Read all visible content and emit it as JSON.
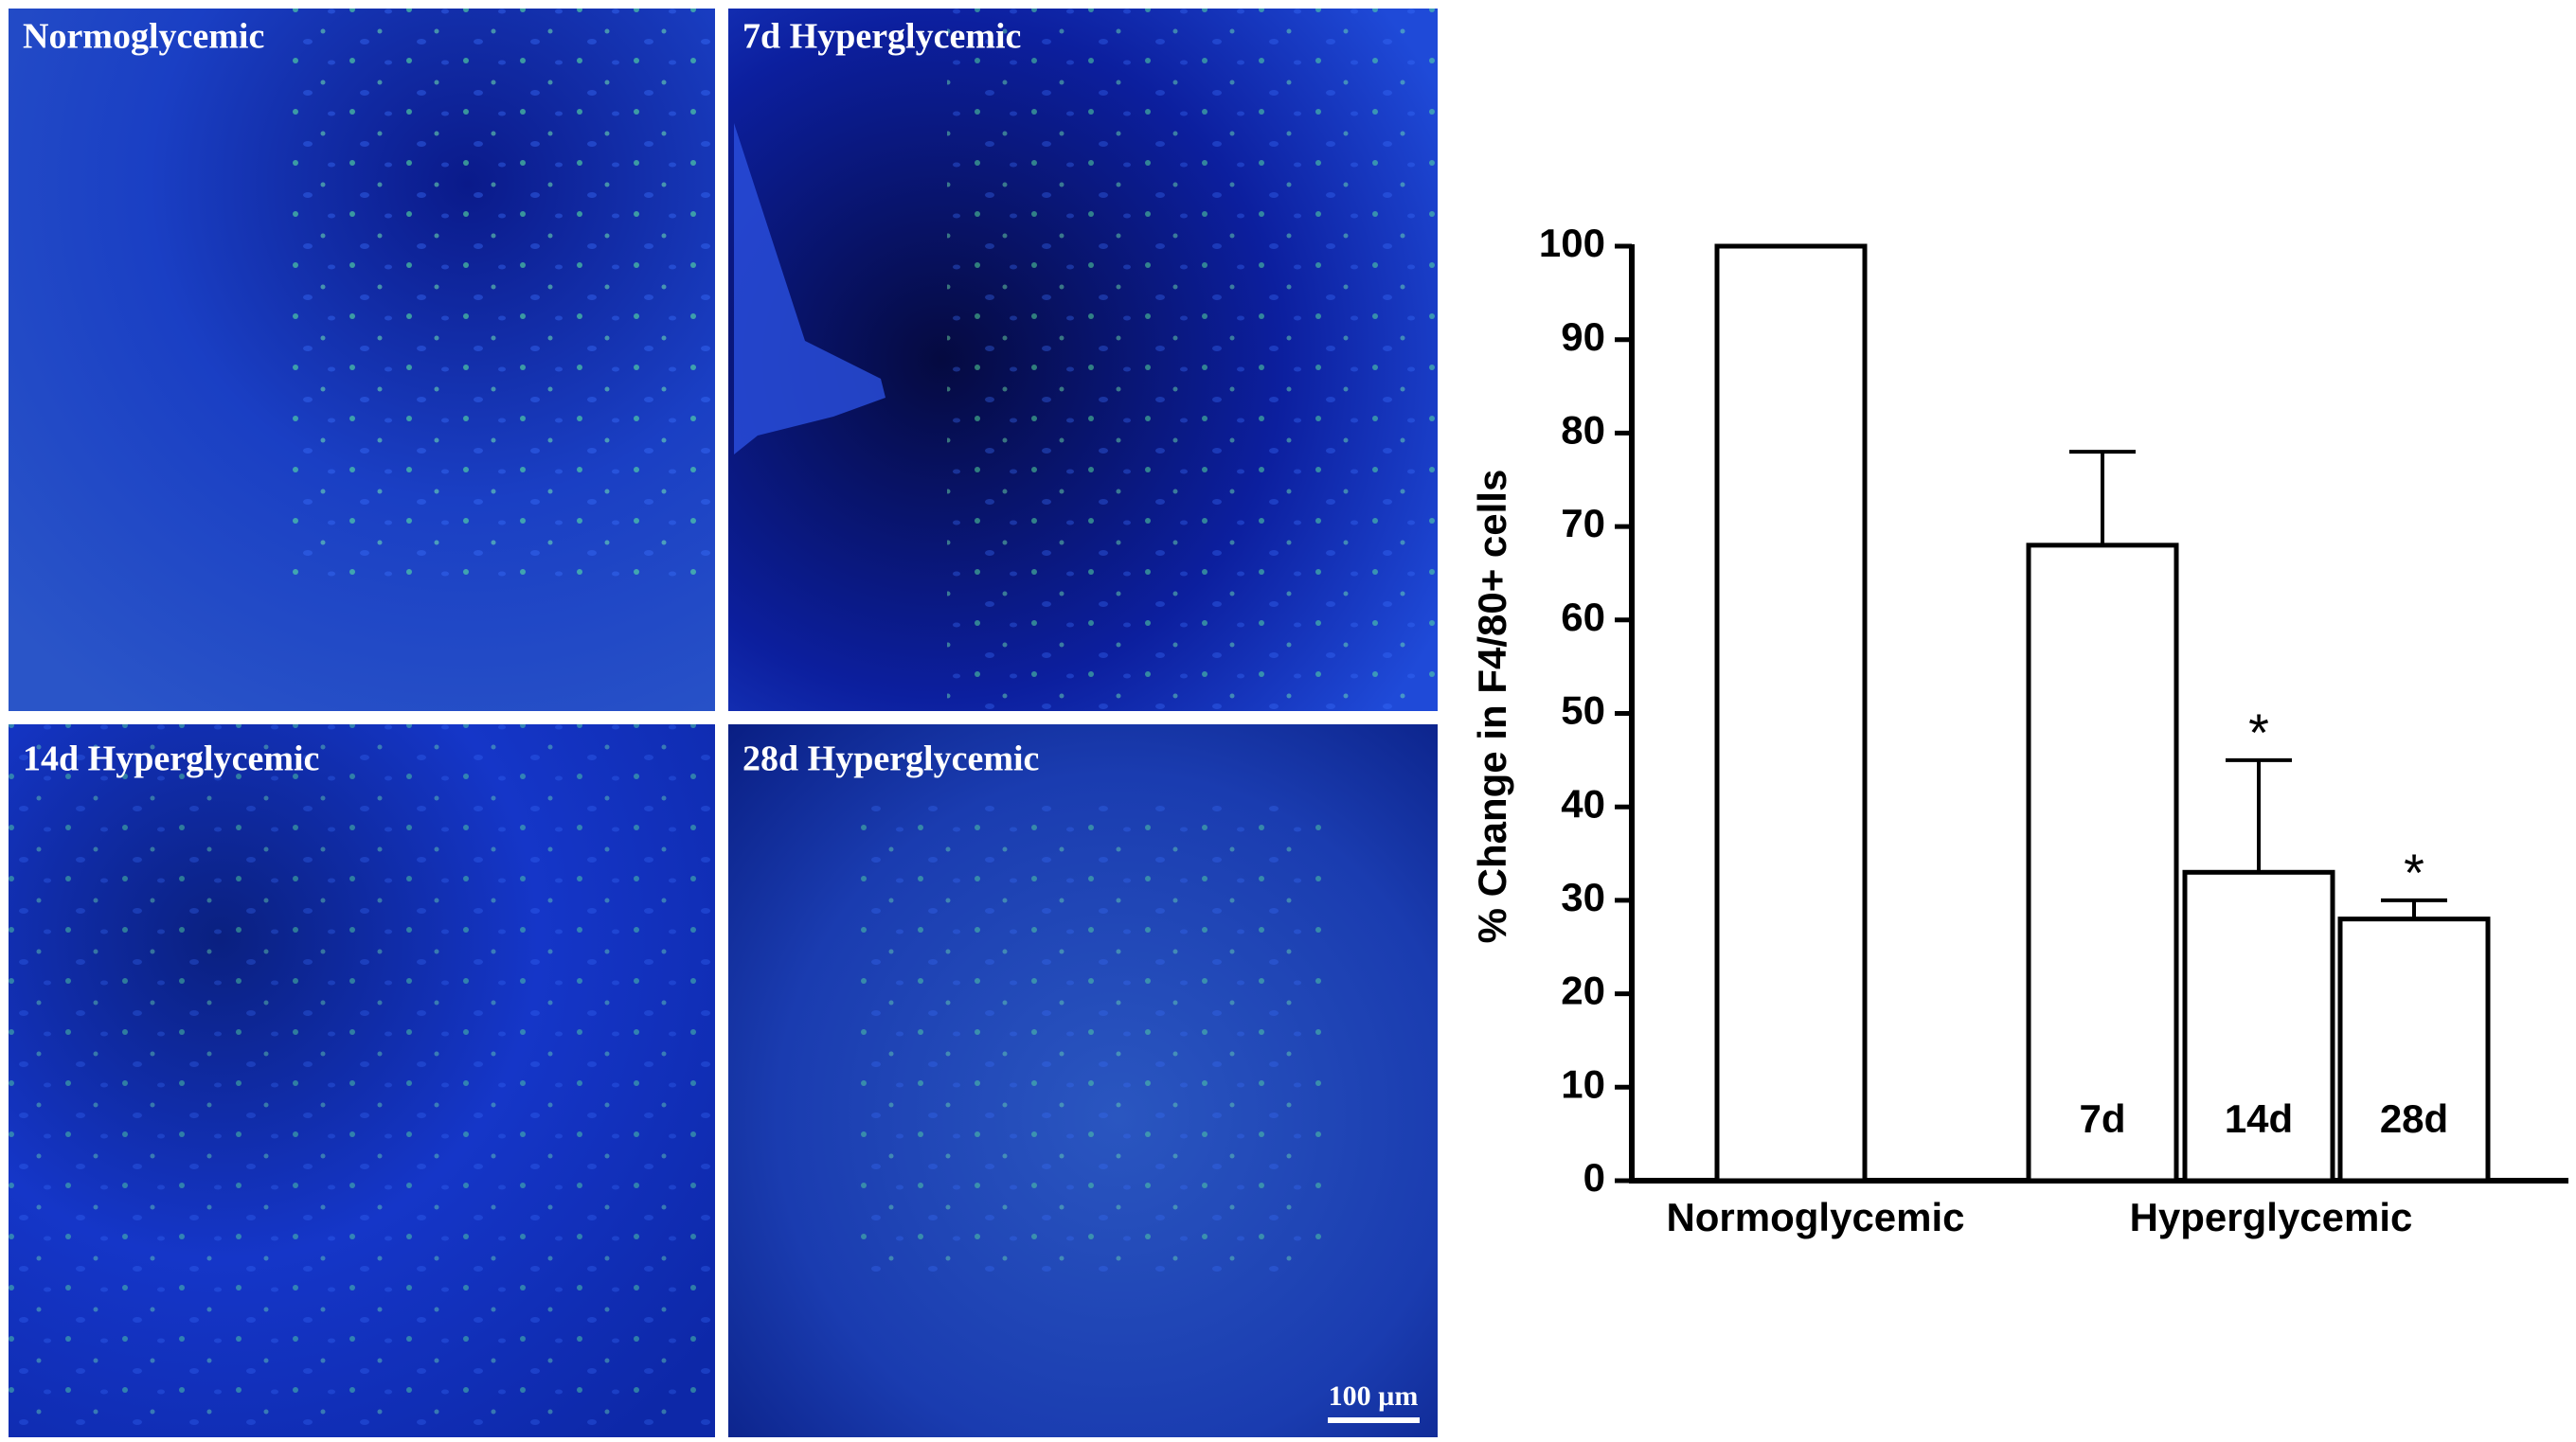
{
  "panels": [
    {
      "label": "Normoglycemic"
    },
    {
      "label": "7d Hyperglycemic"
    },
    {
      "label": "14d Hyperglycemic"
    },
    {
      "label": "28d Hyperglycemic"
    }
  ],
  "scale_bar": "100 µm",
  "chart_data": {
    "type": "bar",
    "ylabel": "% Change in F4/80+ cells",
    "categories": [
      null,
      "7d",
      "14d",
      "28d"
    ],
    "values": [
      100,
      68,
      33,
      28
    ],
    "errors": [
      null,
      10,
      12,
      2
    ],
    "significance": [
      null,
      null,
      "*",
      "*"
    ],
    "groups": [
      "Normoglycemic",
      "Hyperglycemic"
    ],
    "color": "#ffffff",
    "ylim": [
      0,
      100
    ],
    "yticks": [
      0,
      10,
      20,
      30,
      40,
      50,
      60,
      70,
      80,
      90,
      100
    ]
  }
}
